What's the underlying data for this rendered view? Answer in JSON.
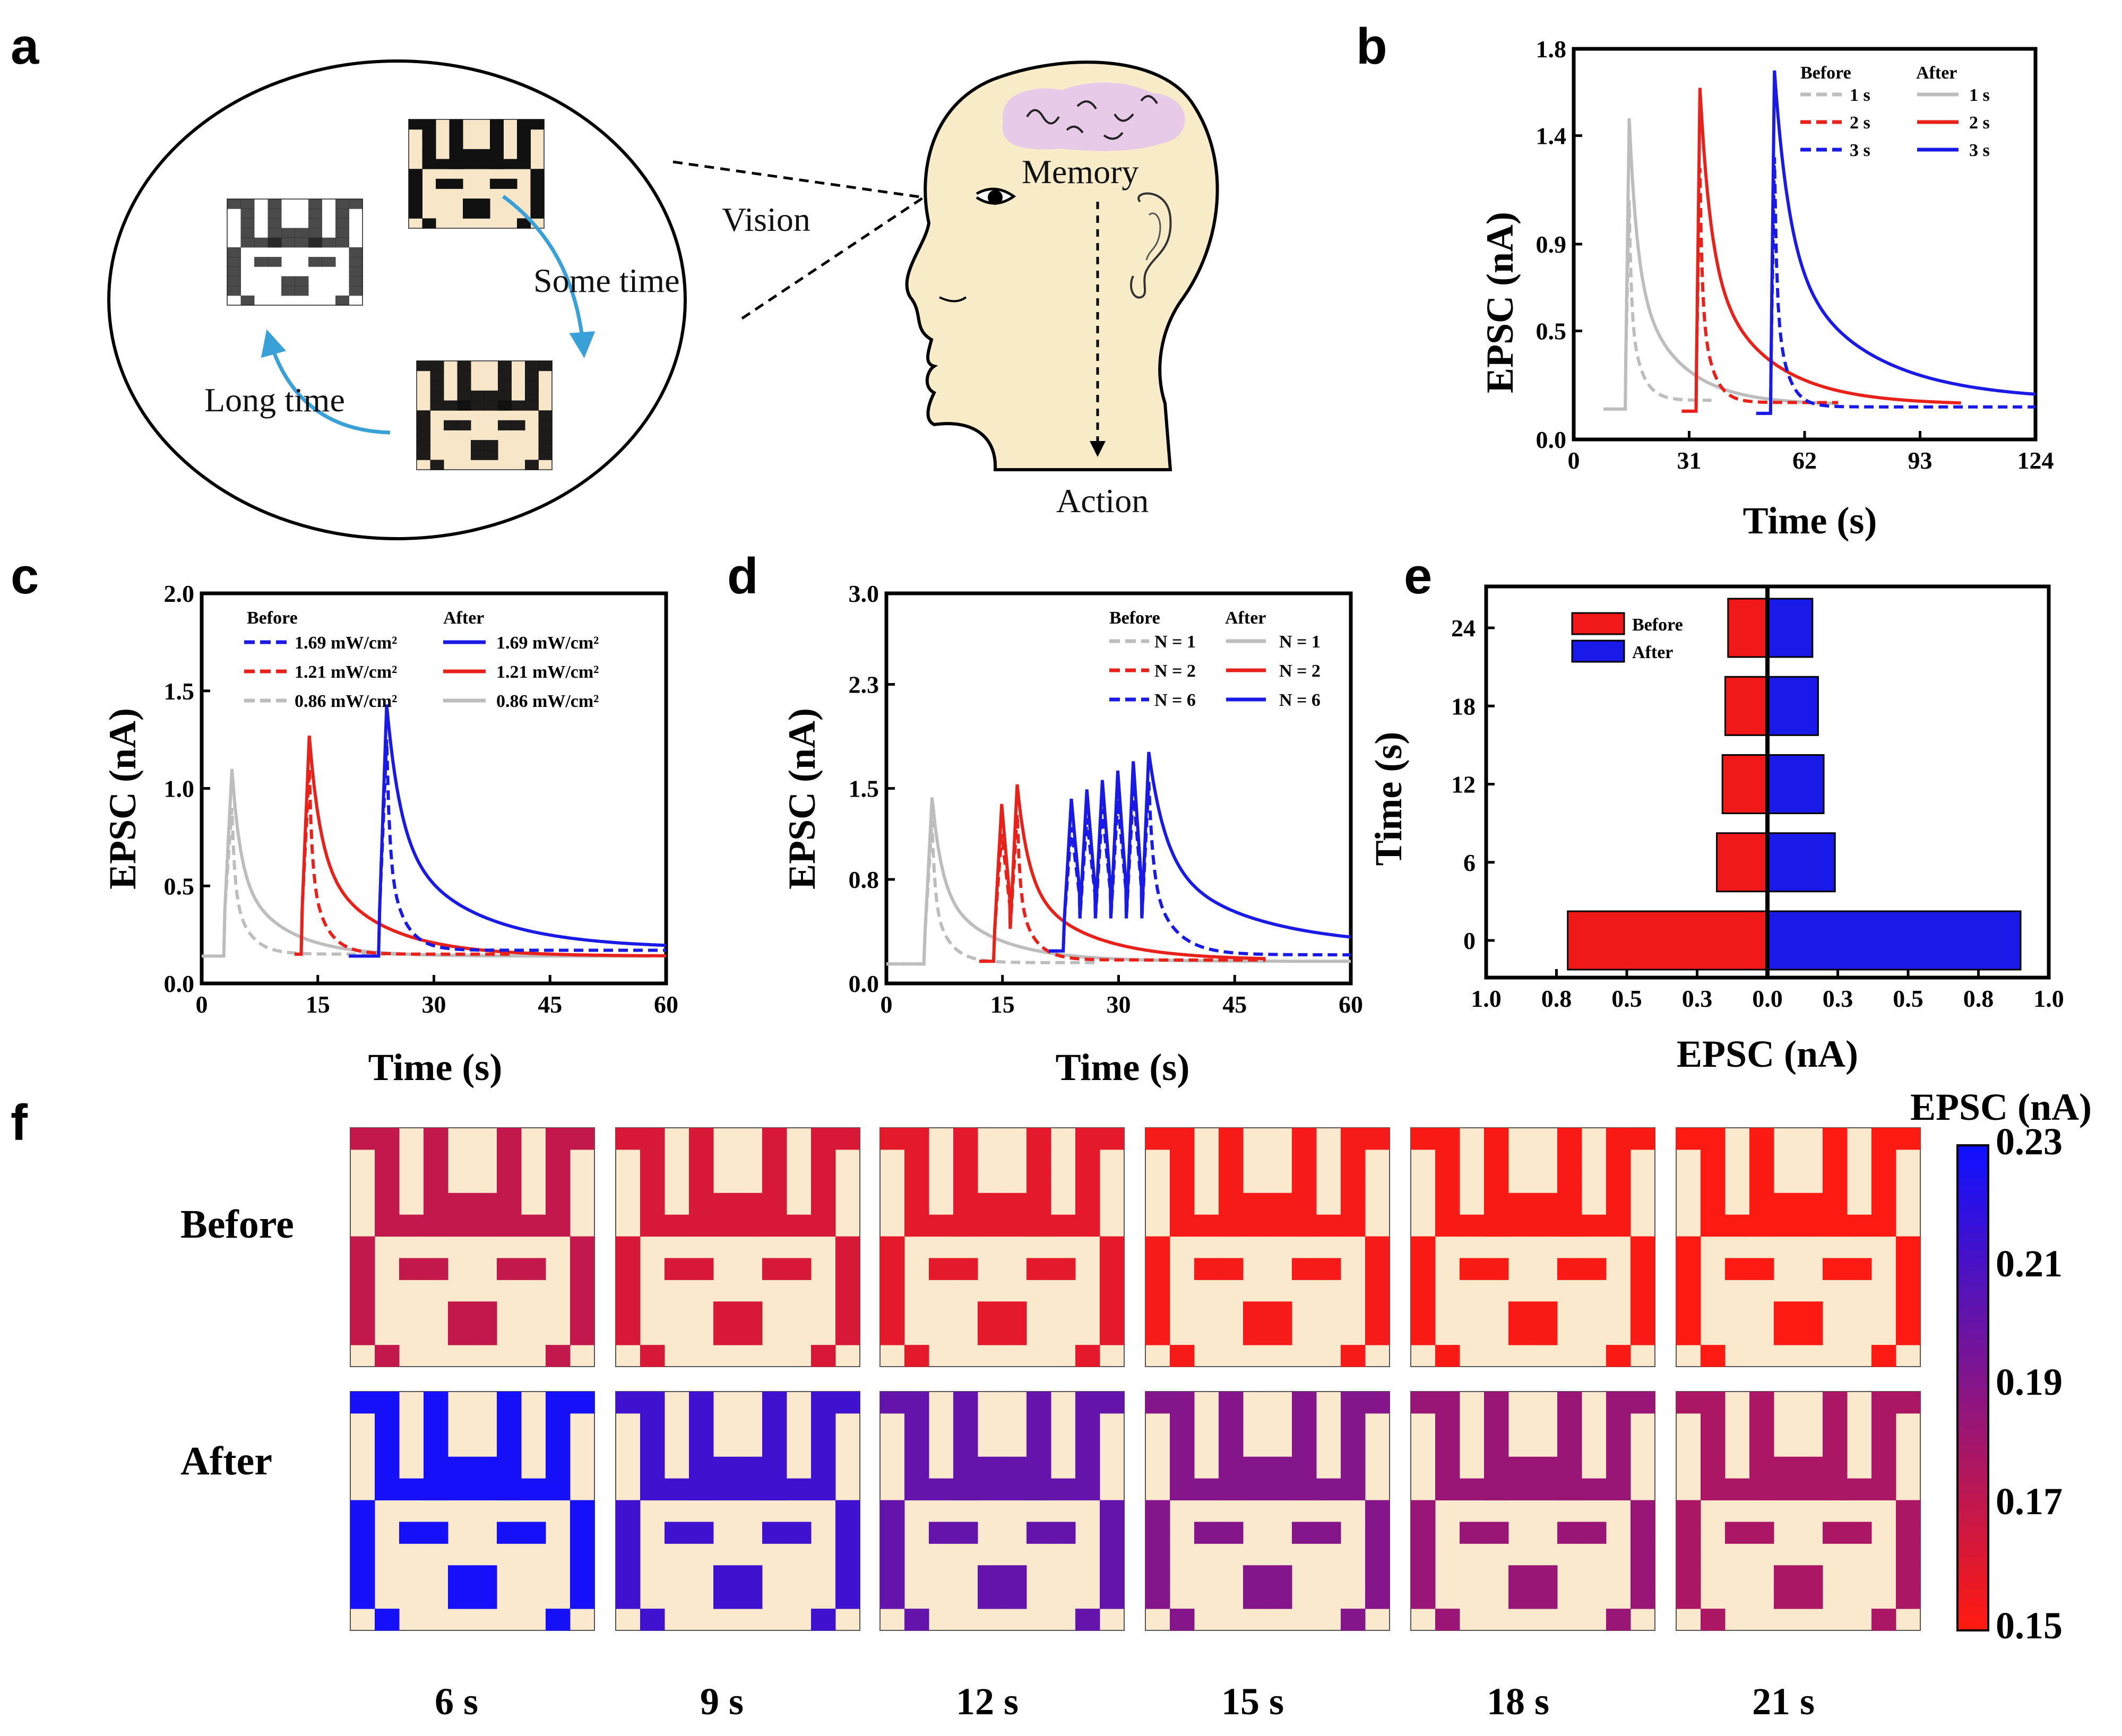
{
  "panels": {
    "a": "a",
    "b": "b",
    "c": "c",
    "d": "d",
    "e": "e",
    "f": "f"
  },
  "panel_a": {
    "labels": {
      "vision": "Vision",
      "memory": "Memory",
      "action": "Action",
      "some_time": "Some time",
      "long_time": "Long time"
    },
    "colors": {
      "arrow": "#3aa0d8",
      "head": "#f8ecc8",
      "brain": "#e7c9e8",
      "pixel_bg": "#f7e6c8"
    }
  },
  "chart_data": [
    {
      "id": "b",
      "type": "line",
      "xlabel": "Time (s)",
      "ylabel": "EPSC (nA)",
      "xlim": [
        0,
        124
      ],
      "ylim": [
        0,
        1.8
      ],
      "xticks": [
        0,
        31,
        62,
        93,
        124
      ],
      "yticks": [
        0.0,
        0.5,
        0.9,
        1.4,
        1.8
      ],
      "legend": {
        "before_title": "Before",
        "after_title": "After",
        "entries": [
          "1 s",
          "2 s",
          "3 s"
        ]
      },
      "series": [
        {
          "name": "1 s",
          "color": "#bdbdbd",
          "before": {
            "x0": 8,
            "t": 14,
            "peak": 1.1,
            "tau": 3,
            "end": 37,
            "base": 0.14,
            "final": 0.18
          },
          "after": {
            "x0": 8,
            "t": 14,
            "peak": 1.48,
            "tau": 12,
            "end": 71,
            "base": 0.14,
            "final": 0.16
          }
        },
        {
          "name": "2 s",
          "color": "#e8211a",
          "before": {
            "x0": 29,
            "t": 33,
            "peak": 1.25,
            "tau": 3,
            "end": 71,
            "base": 0.13,
            "final": 0.17
          },
          "after": {
            "x0": 29,
            "t": 33,
            "peak": 1.62,
            "tau": 16,
            "end": 104,
            "base": 0.13,
            "final": 0.16
          }
        },
        {
          "name": "3 s",
          "color": "#1a1ae6",
          "before": {
            "x0": 49,
            "t": 53,
            "peak": 1.3,
            "tau": 3,
            "end": 124,
            "base": 0.12,
            "final": 0.15
          },
          "after": {
            "x0": 49,
            "t": 53,
            "peak": 1.7,
            "tau": 22,
            "end": 124,
            "base": 0.12,
            "final": 0.18
          }
        }
      ]
    },
    {
      "id": "c",
      "type": "line",
      "xlabel": "Time (s)",
      "ylabel": "EPSC (nA)",
      "xlim": [
        0,
        60
      ],
      "ylim": [
        0,
        2.0
      ],
      "xticks": [
        0,
        15,
        30,
        45,
        60
      ],
      "yticks": [
        0.0,
        0.5,
        1.0,
        1.5,
        2.0
      ],
      "legend": {
        "before_title": "Before",
        "after_title": "After",
        "entries": [
          "1.69 mW/cm²",
          "1.21 mW/cm²",
          "0.86 mW/cm²"
        ]
      },
      "series": [
        {
          "name": "0.86 mW/cm²",
          "color": "#bdbdbd",
          "before": {
            "x0": 0,
            "t": 3,
            "peak": 0.9,
            "tau": 2,
            "end": 27,
            "base": 0.14,
            "final": 0.15
          },
          "after": {
            "x0": 0,
            "t": 3,
            "peak": 1.1,
            "tau": 6,
            "end": 58,
            "base": 0.14,
            "final": 0.14
          }
        },
        {
          "name": "1.21 mW/cm²",
          "color": "#e8211a",
          "before": {
            "x0": 12,
            "t": 13,
            "peak": 1.1,
            "tau": 2,
            "end": 40,
            "base": 0.15,
            "final": 0.15
          },
          "after": {
            "x0": 12,
            "t": 13,
            "peak": 1.27,
            "tau": 8,
            "end": 60,
            "base": 0.15,
            "final": 0.14
          }
        },
        {
          "name": "1.69 mW/cm²",
          "color": "#1a1ae6",
          "before": {
            "x0": 19,
            "t": 23,
            "peak": 1.25,
            "tau": 2,
            "end": 60,
            "base": 0.14,
            "final": 0.17
          },
          "after": {
            "x0": 19,
            "t": 23,
            "peak": 1.43,
            "tau": 10,
            "end": 60,
            "base": 0.14,
            "final": 0.18
          }
        }
      ]
    },
    {
      "id": "d",
      "type": "line",
      "xlabel": "Time (s)",
      "ylabel": "EPSC (nA)",
      "xlim": [
        0,
        60
      ],
      "ylim": [
        0,
        3.0
      ],
      "xticks": [
        0,
        15,
        30,
        45,
        60
      ],
      "yticks": [
        0.0,
        0.8,
        1.5,
        2.3,
        3.0
      ],
      "legend": {
        "before_title": "Before",
        "after_title": "After",
        "entries": [
          "N = 1",
          "N = 2",
          "N = 6"
        ]
      },
      "series": [
        {
          "name": "N = 1",
          "color": "#bdbdbd",
          "before": {
            "x0": 0,
            "t": 5,
            "pulses": 1,
            "peak": 1.25,
            "peak_end": 1.25,
            "tau": 2,
            "end": 27,
            "base": 0.15,
            "final": 0.16
          },
          "after": {
            "x0": 0,
            "t": 5,
            "pulses": 1,
            "peak": 1.43,
            "peak_end": 1.43,
            "tau": 7,
            "end": 60,
            "base": 0.15,
            "final": 0.17
          }
        },
        {
          "name": "N = 2",
          "color": "#e8211a",
          "before": {
            "x0": 12,
            "t": 14,
            "pulses": 2,
            "peak": 1.15,
            "peak_end": 1.3,
            "tau": 2,
            "end": 49,
            "base": 0.17,
            "final": 0.18
          },
          "after": {
            "x0": 12,
            "t": 14,
            "pulses": 2,
            "peak": 1.38,
            "peak_end": 1.53,
            "tau": 8,
            "end": 49,
            "base": 0.17,
            "final": 0.18
          }
        },
        {
          "name": "N = 6",
          "color": "#1a1ae6",
          "before": {
            "x0": 21,
            "t": 23,
            "pulses": 6,
            "peak": 1.2,
            "peak_end": 1.55,
            "tau": 3,
            "end": 60,
            "base": 0.25,
            "final": 0.22
          },
          "after": {
            "x0": 21,
            "t": 23,
            "pulses": 6,
            "peak": 1.42,
            "peak_end": 1.78,
            "tau": 12,
            "end": 60,
            "base": 0.25,
            "final": 0.28
          }
        }
      ]
    },
    {
      "id": "e",
      "type": "bar",
      "orientation": "horizontal",
      "xlabel": "EPSC (nA)",
      "ylabel": "Time (s)",
      "xlim": [
        -1.0,
        1.0
      ],
      "xtick_labels": [
        "1.0",
        "0.8",
        "0.5",
        "0.3",
        "0.0",
        "0.3",
        "0.5",
        "0.8",
        "1.0"
      ],
      "categories": [
        0,
        6,
        12,
        18,
        24
      ],
      "series": [
        {
          "name": "Before",
          "color": "#f01818",
          "values": [
            0.71,
            0.18,
            0.16,
            0.15,
            0.14
          ],
          "side": "left"
        },
        {
          "name": "After",
          "color": "#1a1ae8",
          "values": [
            0.9,
            0.24,
            0.2,
            0.18,
            0.16
          ],
          "side": "right"
        }
      ]
    },
    {
      "id": "f",
      "type": "heatmap",
      "row_labels": [
        "Before",
        "After"
      ],
      "col_labels": [
        "6 s",
        "9 s",
        "12 s",
        "15 s",
        "18 s",
        "21 s"
      ],
      "values": [
        [
          0.17,
          0.163,
          0.159,
          0.153,
          0.152,
          0.151
        ],
        [
          0.228,
          0.214,
          0.202,
          0.191,
          0.184,
          0.178
        ]
      ],
      "colorbar": {
        "title": "EPSC (nA)",
        "min": 0.15,
        "max": 0.23,
        "ticks": [
          "0.23",
          "0.21",
          "0.19",
          "0.17",
          "0.15"
        ],
        "low_color": "#ff1a10",
        "high_color": "#1010ff"
      },
      "background_color": "#fbe9cd"
    }
  ]
}
